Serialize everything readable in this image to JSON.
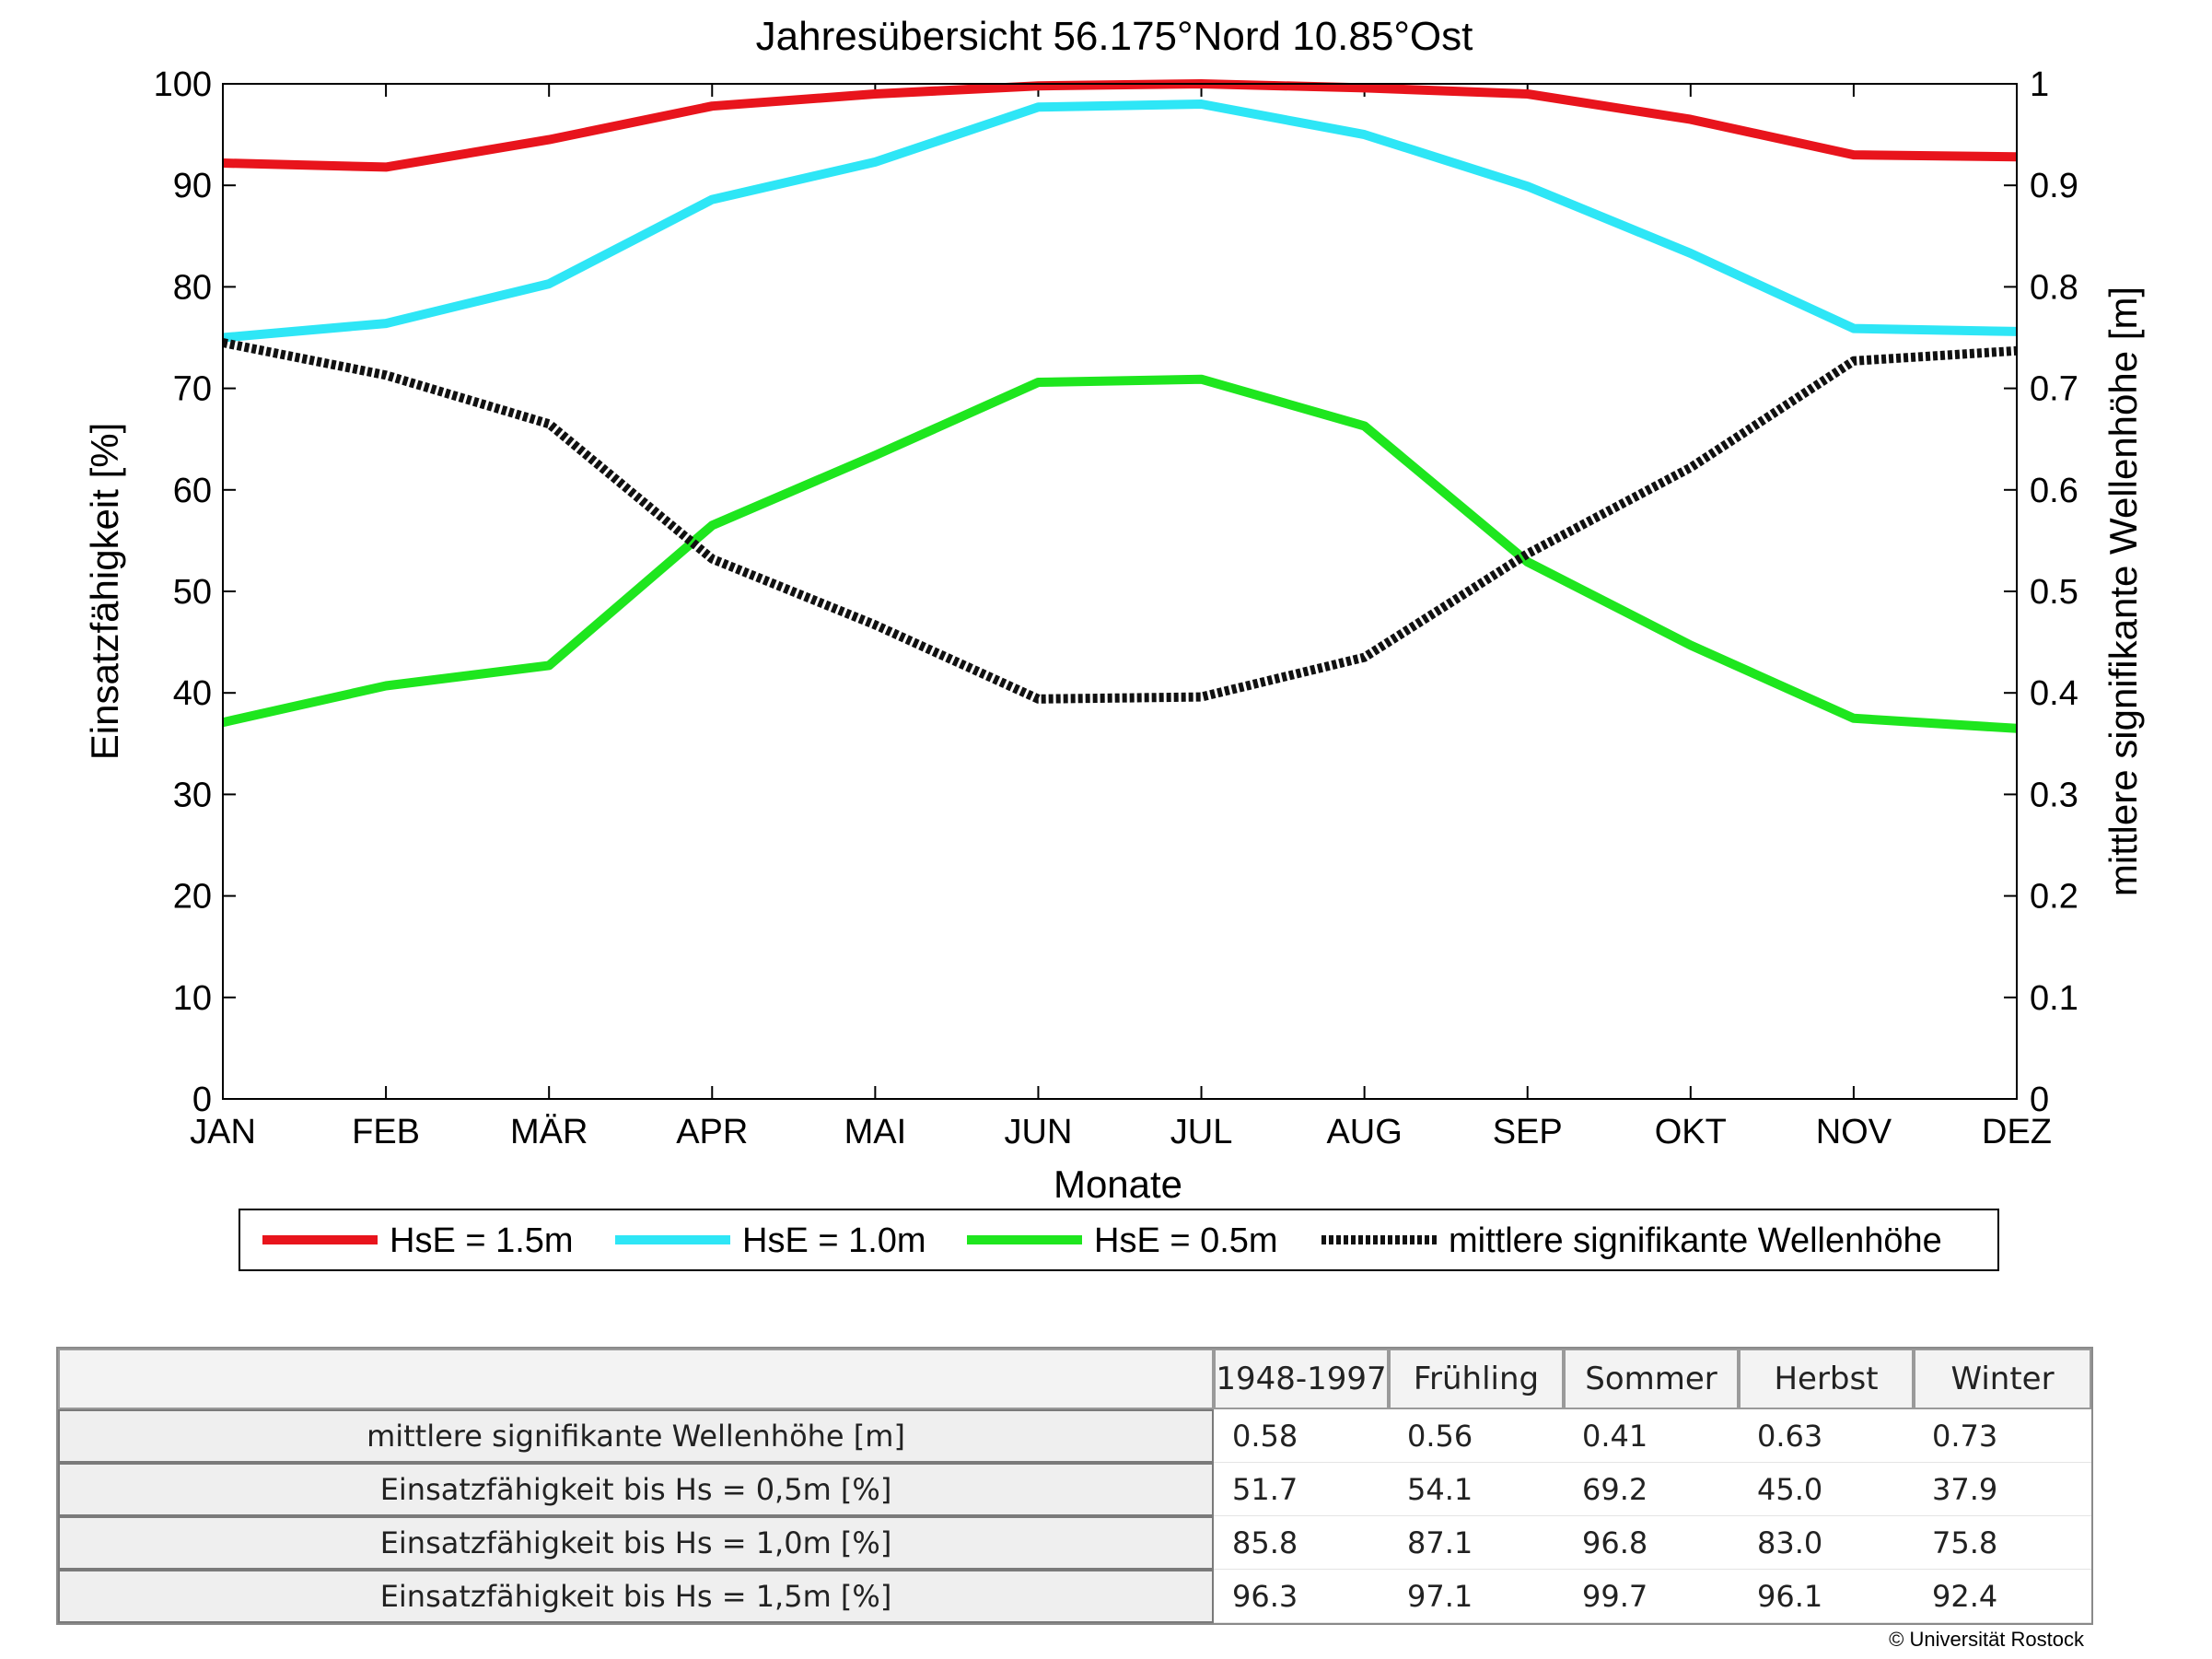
{
  "chart_data": {
    "type": "line",
    "title": "Jahresübersicht  56.175°Nord  10.85°Ost",
    "xlabel": "Monate",
    "ylabel_left": "Einsatzfähigkeit [%]",
    "ylabel_right": "mittlere signifikante Wellenhöhe [m]",
    "categories": [
      "JAN",
      "FEB",
      "MÄR",
      "APR",
      "MAI",
      "JUN",
      "JUL",
      "AUG",
      "SEP",
      "OKT",
      "NOV",
      "DEZ"
    ],
    "ylim_left": [
      0,
      100
    ],
    "yticks_left": [
      "0",
      "10",
      "20",
      "30",
      "40",
      "50",
      "60",
      "70",
      "80",
      "90",
      "100"
    ],
    "ylim_right": [
      0,
      1
    ],
    "yticks_right": [
      "0",
      "0.1",
      "0.2",
      "0.3",
      "0.4",
      "0.5",
      "0.6",
      "0.7",
      "0.8",
      "0.9",
      "1"
    ],
    "grid": false,
    "legend_position": "bottom",
    "series": [
      {
        "name": "HsE = 1.5m",
        "axis": "left",
        "color": "#e8141c",
        "style": "solid",
        "values": [
          92.2,
          91.8,
          94.5,
          97.8,
          99.0,
          99.8,
          100.0,
          99.6,
          99.0,
          96.5,
          93.0,
          92.8
        ]
      },
      {
        "name": "HsE = 1.0m",
        "axis": "left",
        "color": "#2ee6f6",
        "style": "solid",
        "values": [
          75.0,
          76.4,
          80.3,
          88.6,
          92.3,
          97.7,
          98.0,
          95.0,
          89.9,
          83.3,
          75.9,
          75.6
        ]
      },
      {
        "name": "HsE = 0.5m",
        "axis": "left",
        "color": "#1ee61e",
        "style": "solid",
        "values": [
          37.1,
          40.7,
          42.7,
          56.5,
          63.4,
          70.6,
          70.9,
          66.3,
          52.9,
          44.7,
          37.5,
          36.5
        ]
      },
      {
        "name": "mittlere signifikante Wellenhöhe",
        "axis": "right",
        "color": "#111111",
        "style": "dotted",
        "values": [
          0.745,
          0.713,
          0.665,
          0.532,
          0.467,
          0.394,
          0.396,
          0.435,
          0.537,
          0.622,
          0.727,
          0.737
        ]
      }
    ]
  },
  "table": {
    "columns": [
      "1948-1997",
      "Frühling",
      "Sommer",
      "Herbst",
      "Winter"
    ],
    "rows": [
      {
        "label": "mittlere signifikante Wellenhöhe [m]",
        "values": [
          "0.58",
          "0.56",
          "0.41",
          "0.63",
          "0.73"
        ]
      },
      {
        "label": "Einsatzfähigkeit bis Hs = 0,5m [%]",
        "values": [
          "51.7",
          "54.1",
          "69.2",
          "45.0",
          "37.9"
        ]
      },
      {
        "label": "Einsatzfähigkeit bis Hs = 1,0m [%]",
        "values": [
          "85.8",
          "87.1",
          "96.8",
          "83.0",
          "75.8"
        ]
      },
      {
        "label": "Einsatzfähigkeit bis Hs = 1,5m [%]",
        "values": [
          "96.3",
          "97.1",
          "99.7",
          "96.1",
          "92.4"
        ]
      }
    ]
  },
  "copyright": "© Universität Rostock"
}
